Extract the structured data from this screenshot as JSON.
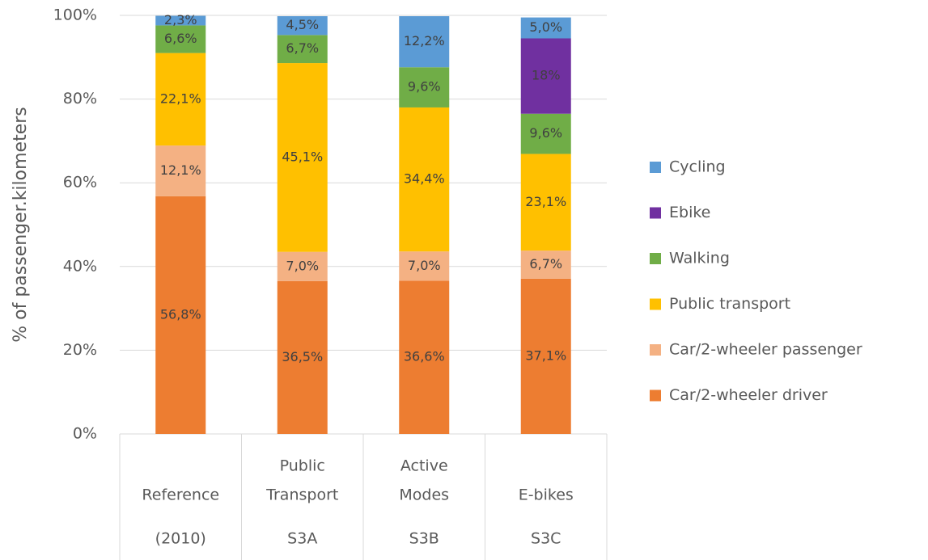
{
  "chart_data": {
    "type": "stacked-bar",
    "y_label": "% of passenger.kilometers",
    "categories": [
      [
        "Reference",
        "(2010)"
      ],
      [
        "Public",
        "Transport",
        "S3A"
      ],
      [
        "Active",
        "Modes",
        "S3B"
      ],
      [
        "E-bikes",
        "S3C"
      ]
    ],
    "ylim": [
      0,
      100
    ],
    "yticks": [
      {
        "value": 0,
        "label": "0%"
      },
      {
        "value": 20,
        "label": "20%"
      },
      {
        "value": 40,
        "label": "40%"
      },
      {
        "value": 60,
        "label": "60%"
      },
      {
        "value": 80,
        "label": "80%"
      },
      {
        "value": 100,
        "label": "100%"
      }
    ],
    "grid": true,
    "legend": "right",
    "series": [
      {
        "name": "Car/2-wheeler driver",
        "color": "#ed7d31",
        "values": [
          56.8,
          36.5,
          36.6,
          37.1
        ],
        "value_labels": [
          "56,8%",
          "36,5%",
          "36,6%",
          "37,1%"
        ]
      },
      {
        "name": "Car/2-wheeler passenger",
        "color": "#f4b183",
        "values": [
          12.1,
          7.0,
          7.0,
          6.7
        ],
        "value_labels": [
          "12,1%",
          "7,0%",
          "7,0%",
          "6,7%"
        ]
      },
      {
        "name": "Public transport",
        "color": "#ffc000",
        "values": [
          22.1,
          45.1,
          34.4,
          23.1
        ],
        "value_labels": [
          "22,1%",
          "45,1%",
          "34,4%",
          "23,1%"
        ]
      },
      {
        "name": "Walking",
        "color": "#70ad47",
        "values": [
          6.6,
          6.7,
          9.6,
          9.6
        ],
        "value_labels": [
          "6,6%",
          "6,7%",
          "9,6%",
          "9,6%"
        ]
      },
      {
        "name": "Ebike",
        "color": "#7030a0",
        "values": [
          null,
          null,
          null,
          18
        ],
        "value_labels": [
          null,
          null,
          null,
          "18%"
        ]
      },
      {
        "name": "Cycling",
        "color": "#5b9bd5",
        "values": [
          2.3,
          4.5,
          12.2,
          5.0
        ],
        "value_labels": [
          "2,3%",
          "4,5%",
          "12,2%",
          "5,0%"
        ]
      }
    ]
  }
}
